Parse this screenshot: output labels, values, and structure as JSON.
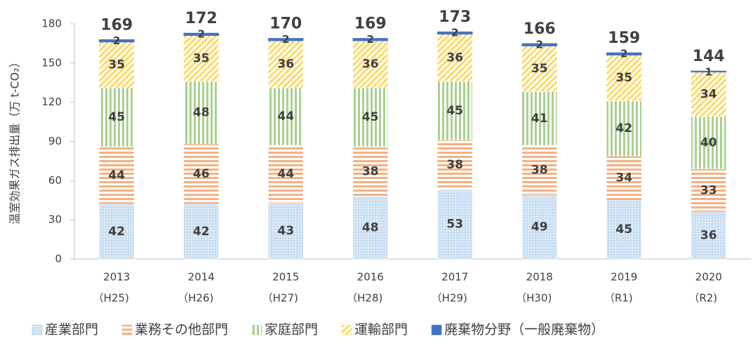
{
  "chart_data": {
    "type": "stacked_bar",
    "ylabel": "温室効果ガス排出量（万 t-CO₂）",
    "categories": [
      "2013",
      "2014",
      "2015",
      "2016",
      "2017",
      "2018",
      "2019",
      "2020"
    ],
    "era_labels": [
      "（H25)",
      "（H26)",
      "（H27)",
      "（H28)",
      "（H29)",
      "（H30)",
      "（R1)",
      "（R2)"
    ],
    "series": [
      {
        "name": "産業部門",
        "color": "#9dc3e6",
        "pattern": "dots",
        "values": [
          42,
          42,
          43,
          48,
          53,
          49,
          45,
          36
        ]
      },
      {
        "name": "業務その他部門",
        "color": "#f4b183",
        "pattern": "horizontal",
        "values": [
          44,
          46,
          44,
          38,
          38,
          38,
          34,
          33
        ]
      },
      {
        "name": "家庭部門",
        "color": "#a9d18e",
        "pattern": "vertical",
        "values": [
          45,
          48,
          44,
          45,
          45,
          41,
          42,
          40
        ]
      },
      {
        "name": "運輸部門",
        "color": "#ffd966",
        "pattern": "diagonal",
        "values": [
          35,
          35,
          36,
          36,
          36,
          35,
          35,
          34
        ]
      },
      {
        "name": "廃棄物分野（一般廃棄物）",
        "color": "#4472c4",
        "pattern": "solid",
        "values": [
          2,
          2,
          2,
          2,
          2,
          2,
          2,
          1
        ]
      }
    ],
    "totals": [
      169,
      172,
      170,
      169,
      173,
      166,
      159,
      144
    ],
    "ylim": [
      0,
      180
    ],
    "yticks": [
      0,
      30,
      60,
      90,
      120,
      150,
      180
    ],
    "grid": false,
    "legend": "bottom"
  }
}
